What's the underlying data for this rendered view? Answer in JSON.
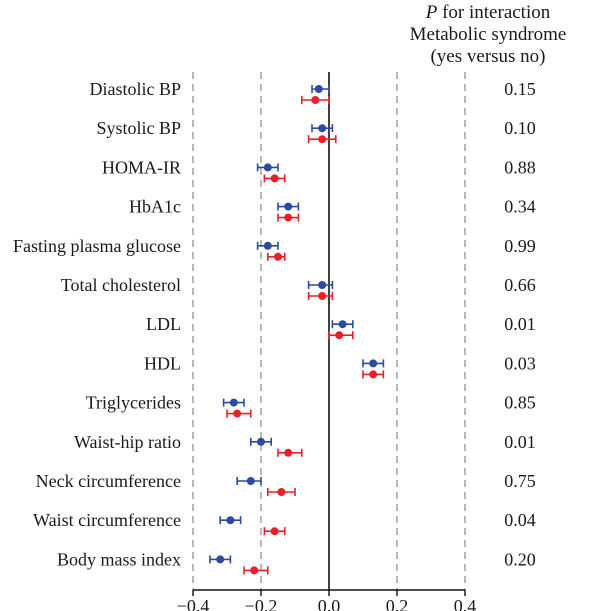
{
  "chart_data": {
    "type": "scatter",
    "subtype": "forest-plot",
    "header": {
      "line1_italic": "P",
      "line1_rest": " for interaction",
      "line2": "Metabolic syndrome",
      "line3": "(yes versus no)"
    },
    "x_ticks": [
      "−0.4",
      "−0.2",
      "0.0",
      "0.2",
      "0.4"
    ],
    "x_tick_values": [
      -0.4,
      -0.2,
      0.0,
      0.2,
      0.4
    ],
    "xlim": [
      -0.4,
      0.4
    ],
    "grid": "dashed vertical at -0.4, -0.2, 0.2, 0.4; solid at 0",
    "series_colors": [
      "#2b4aa0",
      "#e8202a"
    ],
    "rows": [
      {
        "label": "Diastolic BP",
        "p": "0.15",
        "blue": {
          "est": -0.03,
          "lo": -0.05,
          "hi": 0.0
        },
        "red": {
          "est": -0.04,
          "lo": -0.08,
          "hi": 0.0
        }
      },
      {
        "label": "Systolic BP",
        "p": "0.10",
        "blue": {
          "est": -0.02,
          "lo": -0.05,
          "hi": 0.01
        },
        "red": {
          "est": -0.02,
          "lo": -0.06,
          "hi": 0.02
        }
      },
      {
        "label": "HOMA-IR",
        "p": "0.88",
        "blue": {
          "est": -0.18,
          "lo": -0.21,
          "hi": -0.15
        },
        "red": {
          "est": -0.16,
          "lo": -0.19,
          "hi": -0.13
        }
      },
      {
        "label": "HbA1c",
        "p": "0.34",
        "blue": {
          "est": -0.12,
          "lo": -0.15,
          "hi": -0.09
        },
        "red": {
          "est": -0.12,
          "lo": -0.15,
          "hi": -0.09
        }
      },
      {
        "label": "Fasting plasma glucose",
        "p": "0.99",
        "blue": {
          "est": -0.18,
          "lo": -0.21,
          "hi": -0.15
        },
        "red": {
          "est": -0.15,
          "lo": -0.18,
          "hi": -0.13
        }
      },
      {
        "label": "Total cholesterol",
        "p": "0.66",
        "blue": {
          "est": -0.02,
          "lo": -0.06,
          "hi": 0.01
        },
        "red": {
          "est": -0.02,
          "lo": -0.06,
          "hi": 0.01
        }
      },
      {
        "label": "LDL",
        "p": "0.01",
        "blue": {
          "est": 0.04,
          "lo": 0.01,
          "hi": 0.07
        },
        "red": {
          "est": 0.03,
          "lo": 0.0,
          "hi": 0.07
        }
      },
      {
        "label": "HDL",
        "p": "0.03",
        "blue": {
          "est": 0.13,
          "lo": 0.1,
          "hi": 0.16
        },
        "red": {
          "est": 0.13,
          "lo": 0.1,
          "hi": 0.16
        }
      },
      {
        "label": "Triglycerides",
        "p": "0.85",
        "blue": {
          "est": -0.28,
          "lo": -0.31,
          "hi": -0.25
        },
        "red": {
          "est": -0.27,
          "lo": -0.3,
          "hi": -0.23
        }
      },
      {
        "label": "Waist-hip ratio",
        "p": "0.01",
        "blue": {
          "est": -0.2,
          "lo": -0.23,
          "hi": -0.17
        },
        "red": {
          "est": -0.12,
          "lo": -0.15,
          "hi": -0.08
        }
      },
      {
        "label": "Neck circumference",
        "p": "0.75",
        "blue": {
          "est": -0.23,
          "lo": -0.27,
          "hi": -0.2
        },
        "red": {
          "est": -0.14,
          "lo": -0.18,
          "hi": -0.1
        }
      },
      {
        "label": "Waist circumference",
        "p": "0.04",
        "blue": {
          "est": -0.29,
          "lo": -0.32,
          "hi": -0.26
        },
        "red": {
          "est": -0.16,
          "lo": -0.19,
          "hi": -0.13
        }
      },
      {
        "label": "Body mass index",
        "p": "0.20",
        "blue": {
          "est": -0.32,
          "lo": -0.35,
          "hi": -0.29
        },
        "red": {
          "est": -0.22,
          "lo": -0.25,
          "hi": -0.18
        }
      }
    ]
  }
}
